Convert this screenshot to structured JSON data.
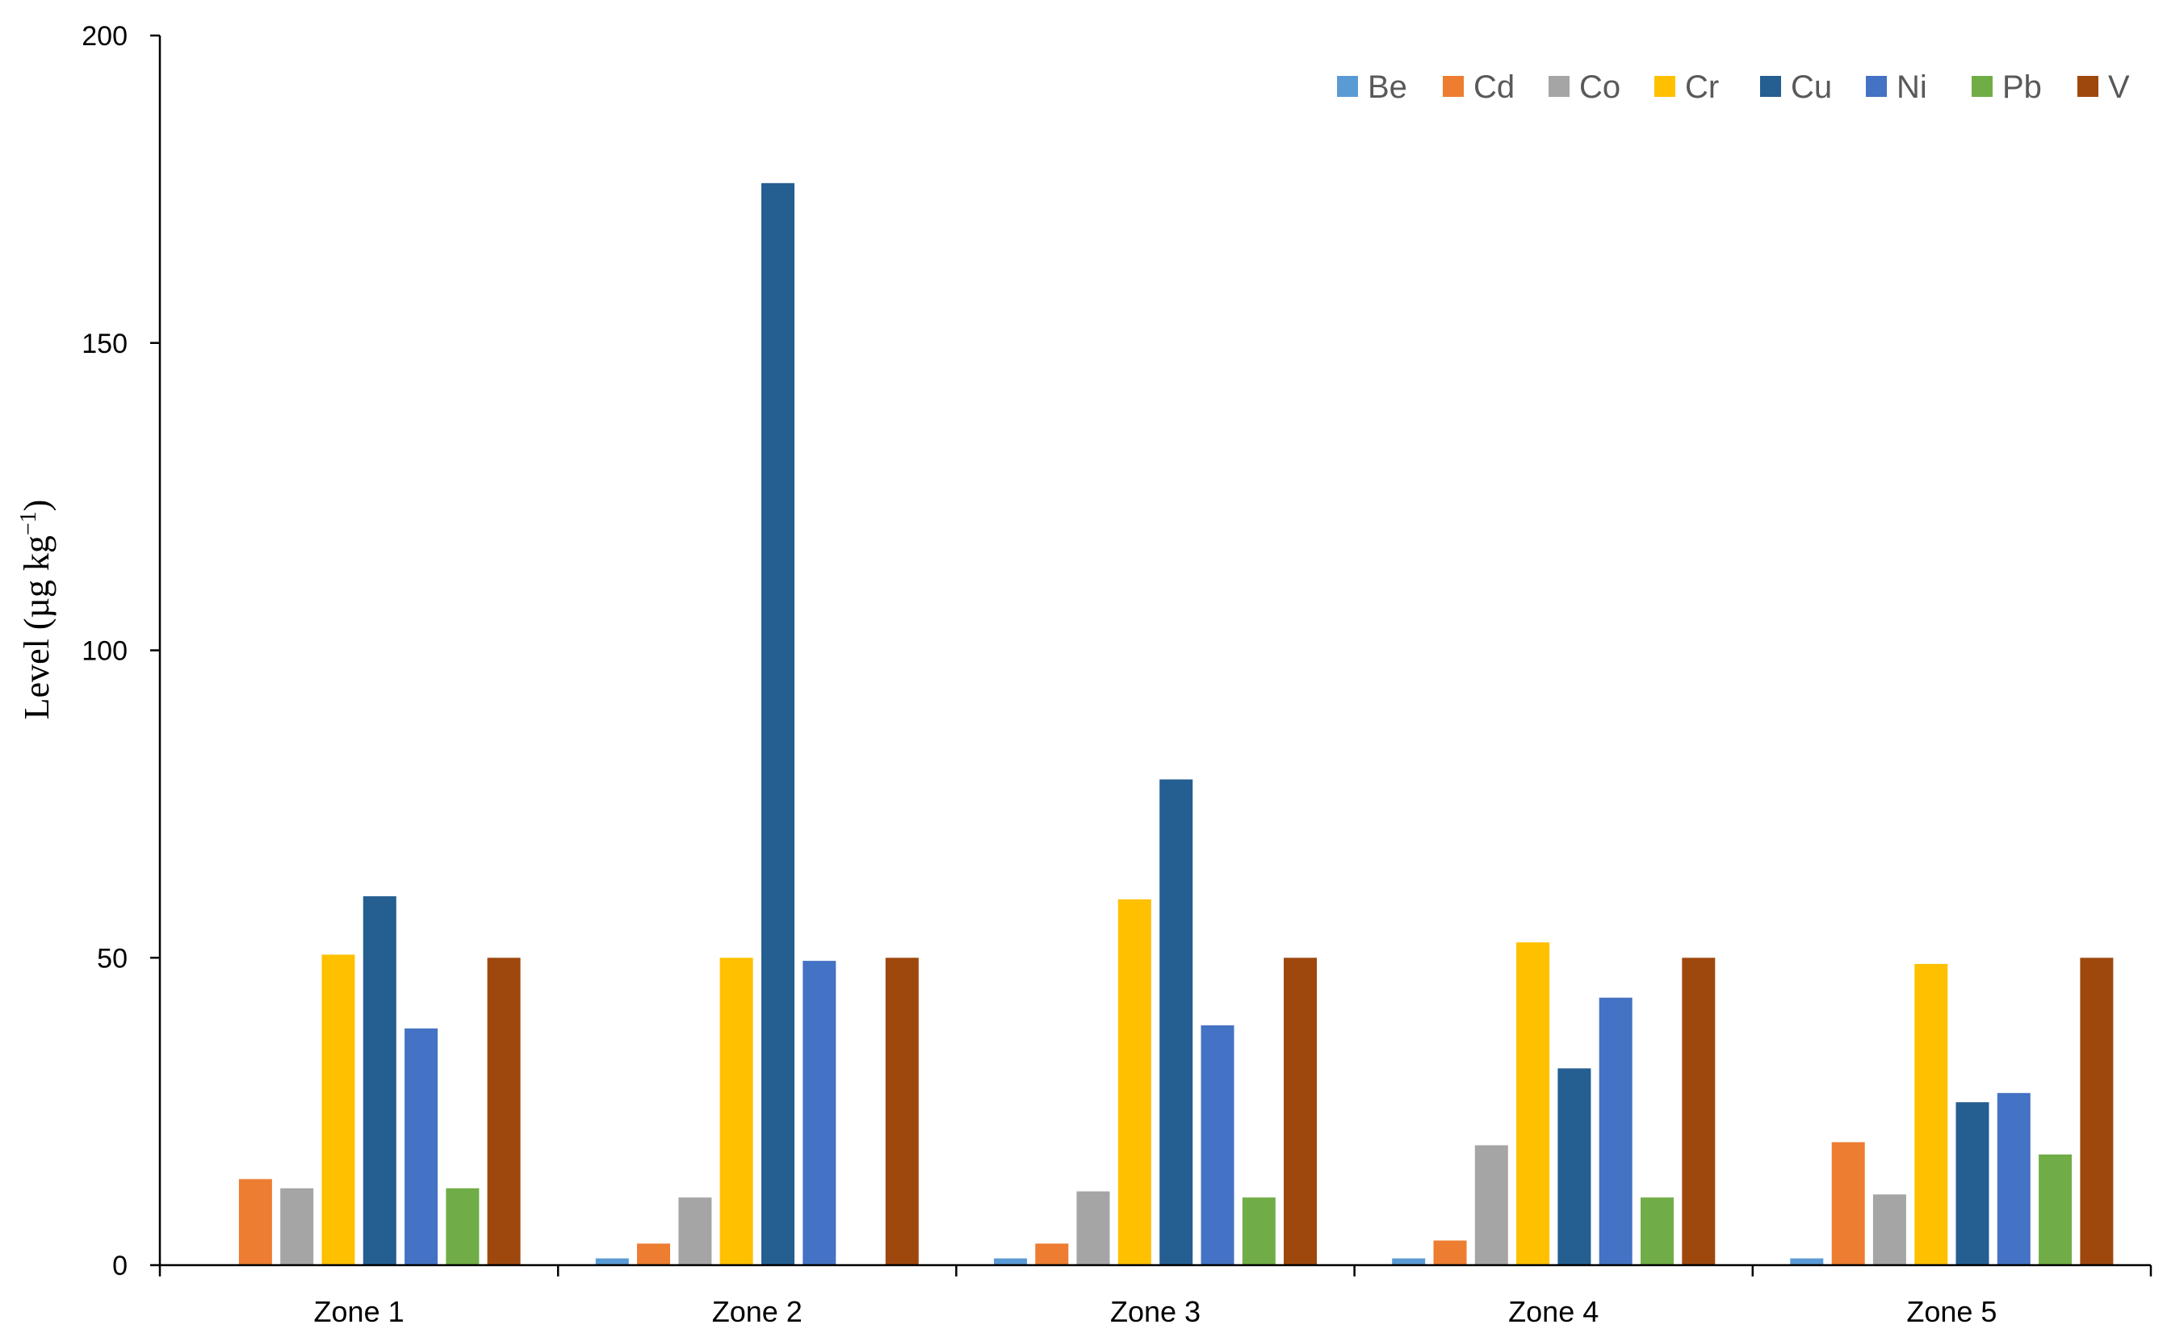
{
  "chart_data": {
    "type": "bar",
    "title": "",
    "xlabel": "",
    "ylabel": "Level (µg kg",
    "ylabel_superscript": "−1",
    "ylabel_suffix": ")",
    "ylim": [
      0,
      200
    ],
    "yticks": [
      0,
      50,
      100,
      150,
      200
    ],
    "grid": false,
    "legend_position": "top-right",
    "categories": [
      "Zone 1",
      "Zone 2",
      "Zone 3",
      "Zone 4",
      "Zone 5"
    ],
    "series": [
      {
        "name": "Be",
        "color": "#5B9BD5",
        "values": [
          0,
          1.1,
          1.1,
          1.1,
          1.1
        ]
      },
      {
        "name": "Cd",
        "color": "#ED7D31",
        "values": [
          14,
          3.5,
          3.5,
          4,
          20
        ]
      },
      {
        "name": "Co",
        "color": "#A5A5A5",
        "values": [
          12.5,
          11,
          12,
          19.5,
          11.5
        ]
      },
      {
        "name": "Cr",
        "color": "#FFC000",
        "values": [
          50.5,
          50,
          59.5,
          52.5,
          49
        ]
      },
      {
        "name": "Cu",
        "color": "#255E91",
        "values": [
          60,
          176,
          79,
          32,
          26.5
        ]
      },
      {
        "name": "Ni",
        "color": "#4472C4",
        "values": [
          38.5,
          49.5,
          39,
          43.5,
          28
        ]
      },
      {
        "name": "Pb",
        "color": "#70AD47",
        "values": [
          12.5,
          0,
          11,
          11,
          18
        ]
      },
      {
        "name": "V",
        "color": "#9E480E",
        "values": [
          50,
          50,
          50,
          50,
          50
        ]
      }
    ]
  }
}
